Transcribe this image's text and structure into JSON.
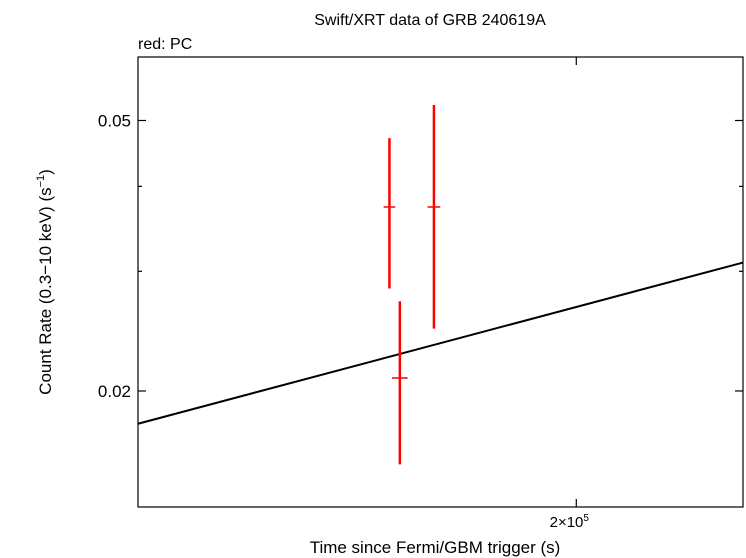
{
  "chart_data": {
    "type": "scatter",
    "title": "Swift/XRT data of GRB 240619A",
    "subtitle": "red: PC",
    "xlabel": "Time since Fermi/GBM trigger (s)",
    "ylabel_main": "Count Rate (0.3−10 keV) (s",
    "ylabel_sup": "−1",
    "ylabel_end": ")",
    "xscale": "log",
    "yscale": "log",
    "xlim": [
      138500,
      230000
    ],
    "ylim": [
      0.0135,
      0.062
    ],
    "y_ticks": [
      {
        "value": 0.05,
        "label": "0.05"
      },
      {
        "value": 0.02,
        "label": "0.02"
      }
    ],
    "y_minor_ticks": [
      0.03,
      0.04
    ],
    "x_ticks": [
      {
        "value": 200000,
        "label_base": "2×10",
        "label_exp": "5"
      }
    ],
    "series": [
      {
        "color": "#ff0000",
        "points": [
          {
            "x": 171000,
            "xerr": [
              170600,
              171400
            ],
            "y": 0.0373,
            "ylo": 0.0283,
            "yhi": 0.0471
          },
          {
            "x": 172500,
            "xerr": [
              171800,
              173200
            ],
            "y": 0.0209,
            "ylo": 0.0156,
            "yhi": 0.0271
          },
          {
            "x": 177500,
            "xerr": [
              177000,
              178000
            ],
            "y": 0.0373,
            "ylo": 0.0247,
            "yhi": 0.0527
          }
        ]
      }
    ],
    "model_line": {
      "color": "#000000",
      "points": [
        {
          "x": 138500,
          "y": 0.0179
        },
        {
          "x": 230000,
          "y": 0.0309
        }
      ]
    }
  }
}
